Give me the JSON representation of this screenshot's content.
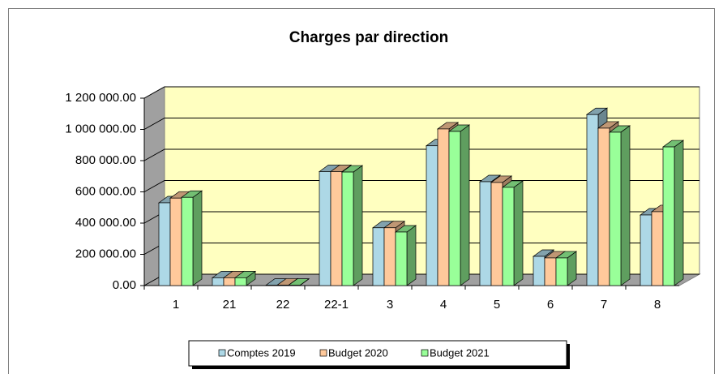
{
  "chart_data": {
    "type": "bar3d",
    "title": "Charges par direction",
    "categories": [
      "1",
      "21",
      "22",
      "22-1",
      "3",
      "4",
      "5",
      "6",
      "7",
      "8"
    ],
    "series": [
      {
        "name": "Comptes 2019",
        "color": "#add8e6",
        "values": [
          530000,
          50000,
          2000,
          730000,
          370000,
          895000,
          665000,
          187000,
          1095000,
          452000
        ]
      },
      {
        "name": "Budget 2020",
        "color": "#ffc99b",
        "values": [
          560000,
          50000,
          3000,
          730000,
          370000,
          1003000,
          660000,
          177000,
          1008000,
          473000
        ]
      },
      {
        "name": "Budget 2021",
        "color": "#99ff99",
        "values": [
          565000,
          50000,
          2000,
          727000,
          343000,
          987000,
          629000,
          177000,
          982000,
          888000
        ]
      }
    ],
    "ylim": [
      0,
      1200000
    ],
    "yticks": [
      {
        "value": 0,
        "label": "0.00"
      },
      {
        "value": 200000,
        "label": "200 000.00"
      },
      {
        "value": 400000,
        "label": "400 000.00"
      },
      {
        "value": 600000,
        "label": "600 000.00"
      },
      {
        "value": 800000,
        "label": "800 000.00"
      },
      {
        "value": 1000000,
        "label": "1 000 000.00"
      },
      {
        "value": 1200000,
        "label": "1 200 000.00"
      }
    ],
    "grid": true,
    "legend": "bottom"
  }
}
